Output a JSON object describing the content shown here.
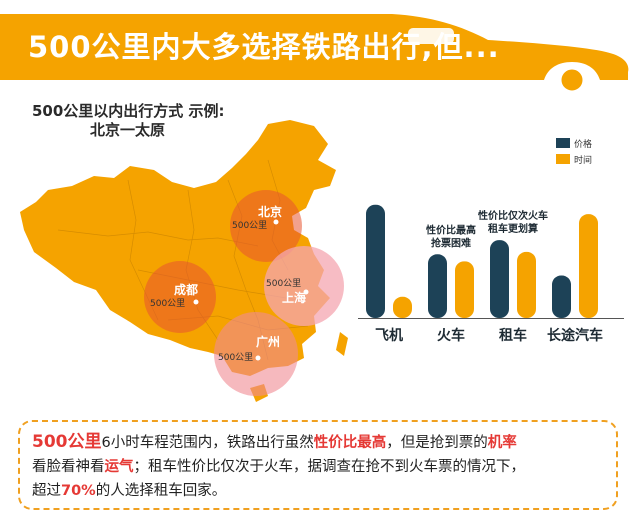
{
  "header": {
    "title": "500公里内大多选择铁路出行,但..."
  },
  "map": {
    "title_line1": "500公里以内出行方式 示例:",
    "title_line2": "北京一太原",
    "radius_label": "500公里",
    "cities": [
      {
        "name": "北京"
      },
      {
        "name": "成都"
      },
      {
        "name": "上海"
      },
      {
        "name": "广州"
      }
    ]
  },
  "chart_data": {
    "type": "bar",
    "categories": [
      "飞机",
      "火车",
      "租车",
      "长途汽车"
    ],
    "series": [
      {
        "name": "价格",
        "color": "#1d4257",
        "values": [
          96,
          54,
          66,
          36
        ]
      },
      {
        "name": "时间",
        "color": "#f5a300",
        "values": [
          18,
          48,
          56,
          88
        ]
      }
    ],
    "ylim": [
      0,
      100
    ],
    "legend_position": "top-right",
    "grid": false,
    "annotations": [
      {
        "category": "火车",
        "lines": [
          "性价比最高",
          "抢票困难"
        ]
      },
      {
        "category": "租车",
        "lines": [
          "性价比仅次火车",
          "租车更划算"
        ]
      }
    ]
  },
  "footer": {
    "line1": [
      {
        "text": "500公里",
        "style": "red"
      },
      {
        "text": "6小时车程范围内，铁路出行虽然",
        "style": "normal"
      },
      {
        "text": "性价比最高",
        "style": "red-b"
      },
      {
        "text": "，但是抢到票的",
        "style": "normal"
      },
      {
        "text": "机率",
        "style": "red-b"
      }
    ],
    "line2": [
      {
        "text": "看脸看神看",
        "style": "normal"
      },
      {
        "text": "运气",
        "style": "red-b"
      },
      {
        "text": "；租车性价比仅次于火车，据调查在抢不到火车票的情况下，",
        "style": "normal"
      }
    ],
    "line3": [
      {
        "text": "超过",
        "style": "normal"
      },
      {
        "text": "70%",
        "style": "red-b"
      },
      {
        "text": "的人选择租车回家。",
        "style": "normal"
      }
    ]
  }
}
